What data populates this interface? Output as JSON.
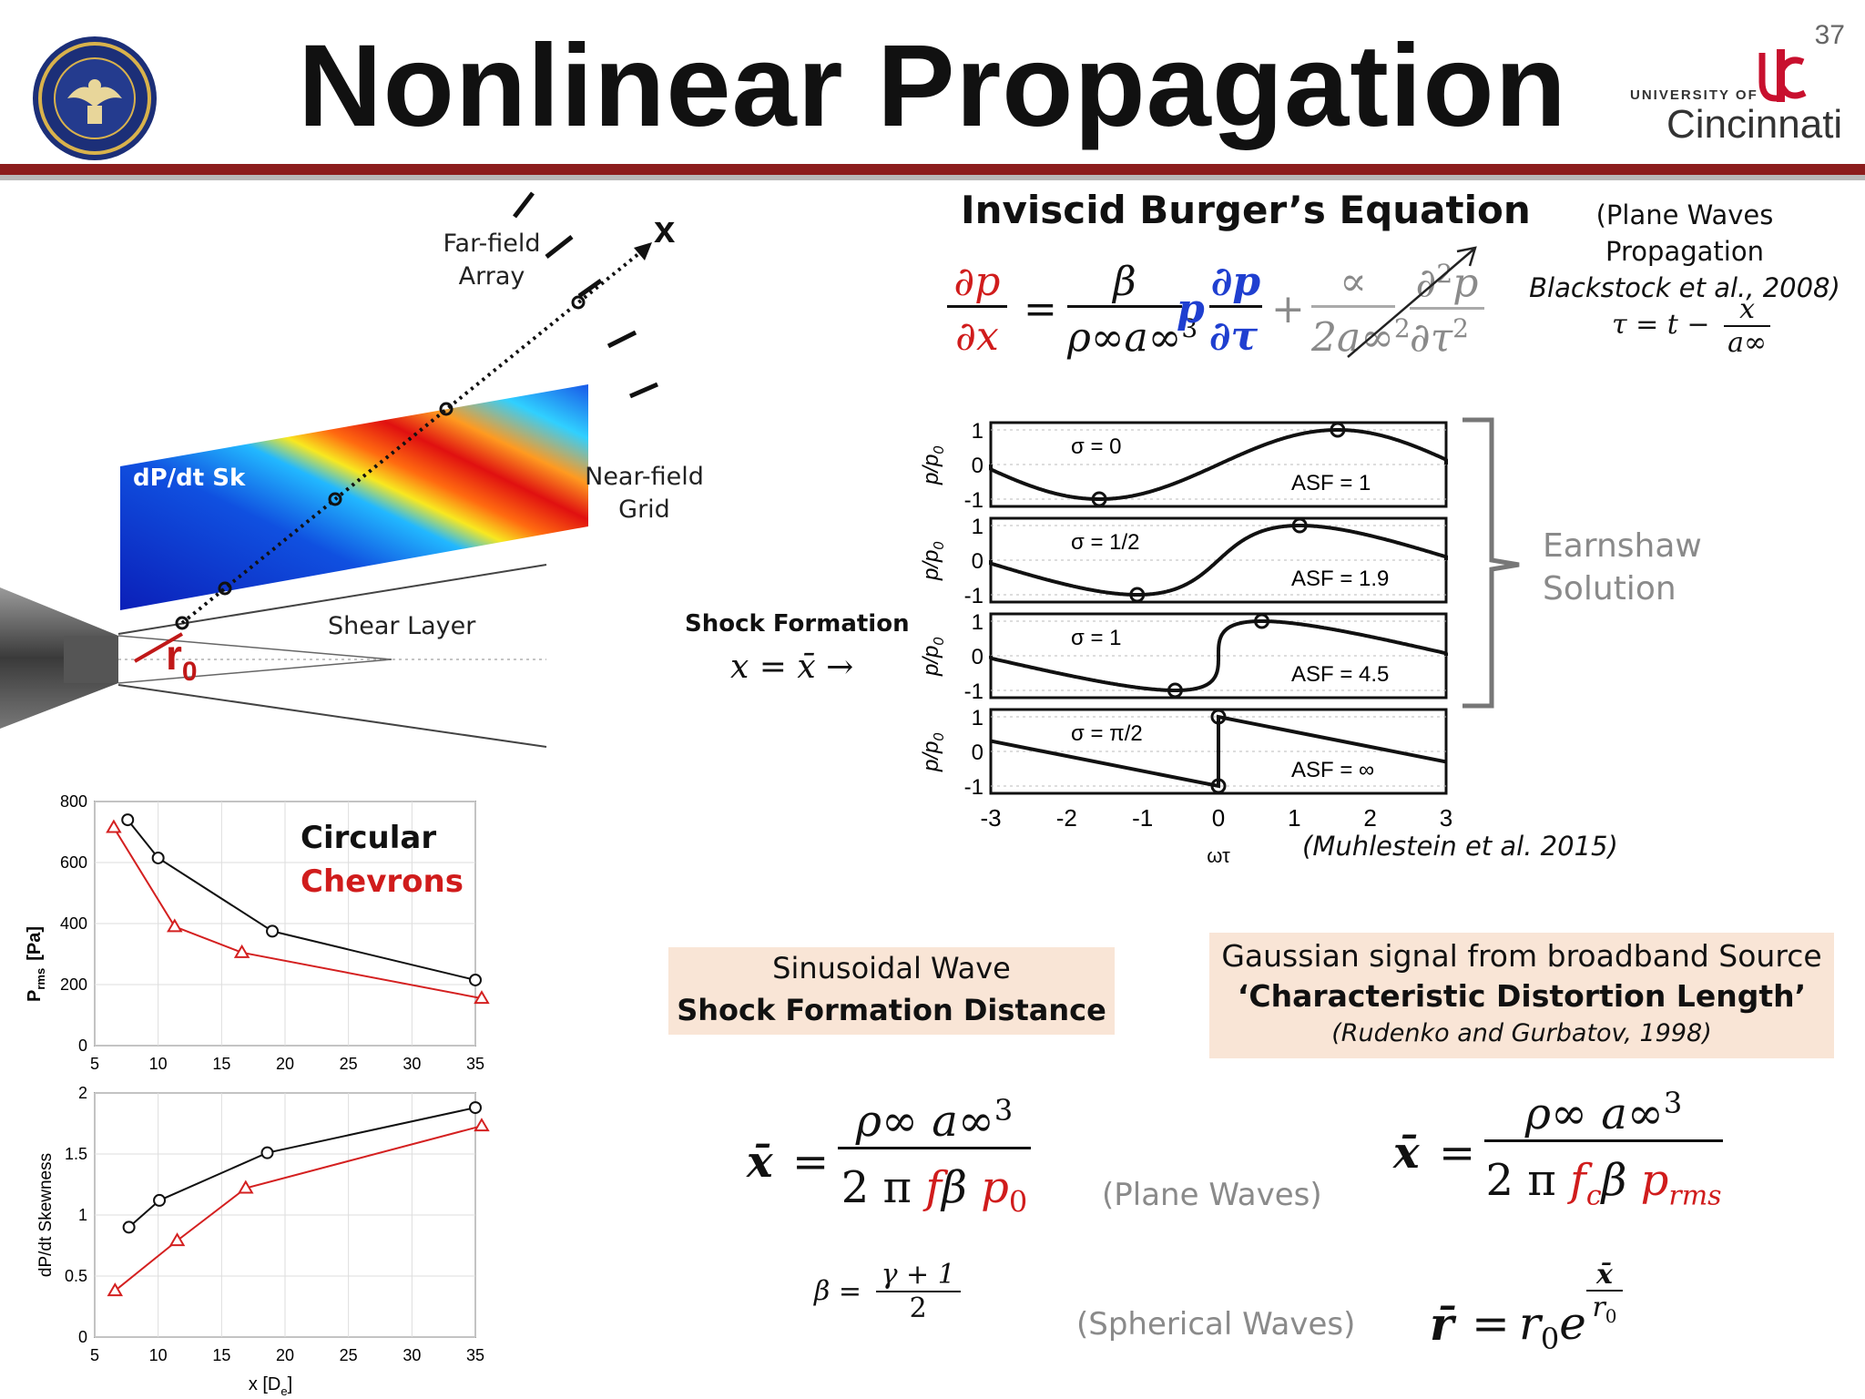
{
  "header": {
    "title": "Nonlinear Propagation",
    "slide_number": "37",
    "uc_logo": {
      "line1": "UNIVERSITY OF",
      "line2": "Cincinnati"
    },
    "seal_icon": "navy-seal-emblem"
  },
  "diagram": {
    "far_field_line1": "Far-field",
    "far_field_line2": "Array",
    "x_axis_label": "x",
    "colormap_label": "dP/dt  Sk",
    "near_field_line1": "Near-field",
    "near_field_line2": "Grid",
    "shear_layer": "Shear Layer",
    "r0_main": "r",
    "r0_sub": "0"
  },
  "burgers": {
    "heading": "Inviscid Burger’s Equation",
    "note_line1": "(Plane Waves Propagation",
    "note_line2": "Blackstock et al., 2008)",
    "tau_lhs": "τ = t −",
    "tau_num": "x",
    "tau_den": "a∞",
    "eq_lhs_num": "∂p",
    "eq_lhs_den": "∂x",
    "eq_equals": "=",
    "eq_coef_num": "β",
    "eq_coef_den": "ρ∞a∞",
    "eq_coef_exp": "3",
    "eq_p": "p",
    "eq_dp_num": "∂p",
    "eq_dp_den": "∂τ",
    "eq_plus": "+",
    "eq_visc_num": "∝",
    "eq_visc_den": "2a∞",
    "eq_visc_den_exp": "2",
    "eq_d2_num": "∂",
    "eq_d2_num_exp": "2",
    "eq_d2_num_tail": "p",
    "eq_d2_den": "∂τ",
    "eq_d2_den_exp": "2"
  },
  "shock": {
    "label": "Shock Formation",
    "eq": "x = x̄ →"
  },
  "earnshaw": {
    "line1": "Earnshaw",
    "line2": "Solution",
    "citation": "(Muhlestein et al. 2015)",
    "ylabel": "p/p",
    "ylabel_sub": "0",
    "xlabel": "ωτ",
    "xticks": [
      "-3",
      "-2",
      "-1",
      "0",
      "1",
      "2",
      "3"
    ],
    "yticks": [
      "1",
      "0",
      "-1"
    ],
    "panels": [
      {
        "sigma": "σ = 0",
        "asf": "ASF = 1"
      },
      {
        "sigma": "σ = 1/2",
        "asf": "ASF = 1.9"
      },
      {
        "sigma": "σ = 1",
        "asf": "ASF = 4.5"
      },
      {
        "sigma": "σ = π/2",
        "asf": "ASF = ∞"
      }
    ]
  },
  "sinusoidal_box": {
    "line1": "Sinusoidal Wave",
    "line2": "Shock Formation Distance"
  },
  "gaussian_box": {
    "line1": "Gaussian signal from broadband Source",
    "line2": "‘Characteristic Distortion Length’",
    "line3": "(Rudenko and Gurbatov, 1998)"
  },
  "formulas": {
    "xbar": "x̄",
    "eq": "=",
    "plane_num": "ρ∞ a∞",
    "plane_num_exp": "3",
    "plane_den_pre": "2 π",
    "plane_den_f": "f",
    "plane_den_beta": "β",
    "plane_den_p": "p",
    "plane_den_p_sub": "0",
    "plane_waves": "(Plane Waves)",
    "beta_lhs": "β =",
    "beta_num": "γ + 1",
    "beta_den": "2",
    "spherical_waves": "(Spherical Waves)",
    "gauss_num": "ρ∞ a∞",
    "gauss_num_exp": "3",
    "gauss_den_pre": "2 π",
    "gauss_den_f": "f",
    "gauss_den_f_sub": "c",
    "gauss_den_beta": "β",
    "gauss_den_p": "p",
    "gauss_den_p_sub": "rms",
    "rbar": "r̄",
    "r_rhs": "r",
    "r_rhs_sub": "0",
    "r_rhs_e": "e",
    "r_exp_num": "x̄",
    "r_exp_den": "r",
    "r_exp_den_sub": "0"
  },
  "legend": {
    "circular": "Circular",
    "chevrons": "Chevrons"
  },
  "colors": {
    "circular": "#111111",
    "chevrons": "#d42020",
    "accent": "#8c1d1d"
  },
  "chart_data": [
    {
      "type": "line",
      "title": "",
      "ylabel": "P",
      "ylabel_sub": "rms",
      "ylabel_unit": "[Pa]",
      "xlabel": "",
      "xlim": [
        5,
        35
      ],
      "ylim": [
        0,
        800
      ],
      "xticks": [
        5,
        10,
        15,
        20,
        25,
        30,
        35
      ],
      "yticks": [
        0,
        200,
        400,
        600,
        800
      ],
      "grid": true,
      "series": [
        {
          "name": "Circular",
          "marker": "circle",
          "x": [
            7.6,
            10,
            19,
            35
          ],
          "y": [
            740,
            615,
            375,
            215
          ]
        },
        {
          "name": "Chevrons",
          "marker": "triangle",
          "x": [
            6.5,
            11.3,
            16.6,
            35.5
          ],
          "y": [
            715,
            390,
            305,
            155
          ]
        }
      ]
    },
    {
      "type": "line",
      "title": "",
      "ylabel": "dP/dt Skewness",
      "xlabel": "x [D",
      "xlabel_sub": "e",
      "xlabel_tail": "]",
      "xlim": [
        5,
        35
      ],
      "ylim": [
        0,
        2
      ],
      "xticks": [
        5,
        10,
        15,
        20,
        25,
        30,
        35
      ],
      "yticks": [
        0,
        0.5,
        1,
        1.5,
        2
      ],
      "grid": true,
      "series": [
        {
          "name": "Circular",
          "marker": "circle",
          "x": [
            7.7,
            10.1,
            18.6,
            35
          ],
          "y": [
            0.9,
            1.12,
            1.51,
            1.88
          ]
        },
        {
          "name": "Chevrons",
          "marker": "triangle",
          "x": [
            6.6,
            11.5,
            16.9,
            35.5
          ],
          "y": [
            0.38,
            0.79,
            1.22,
            1.73
          ]
        }
      ]
    }
  ]
}
